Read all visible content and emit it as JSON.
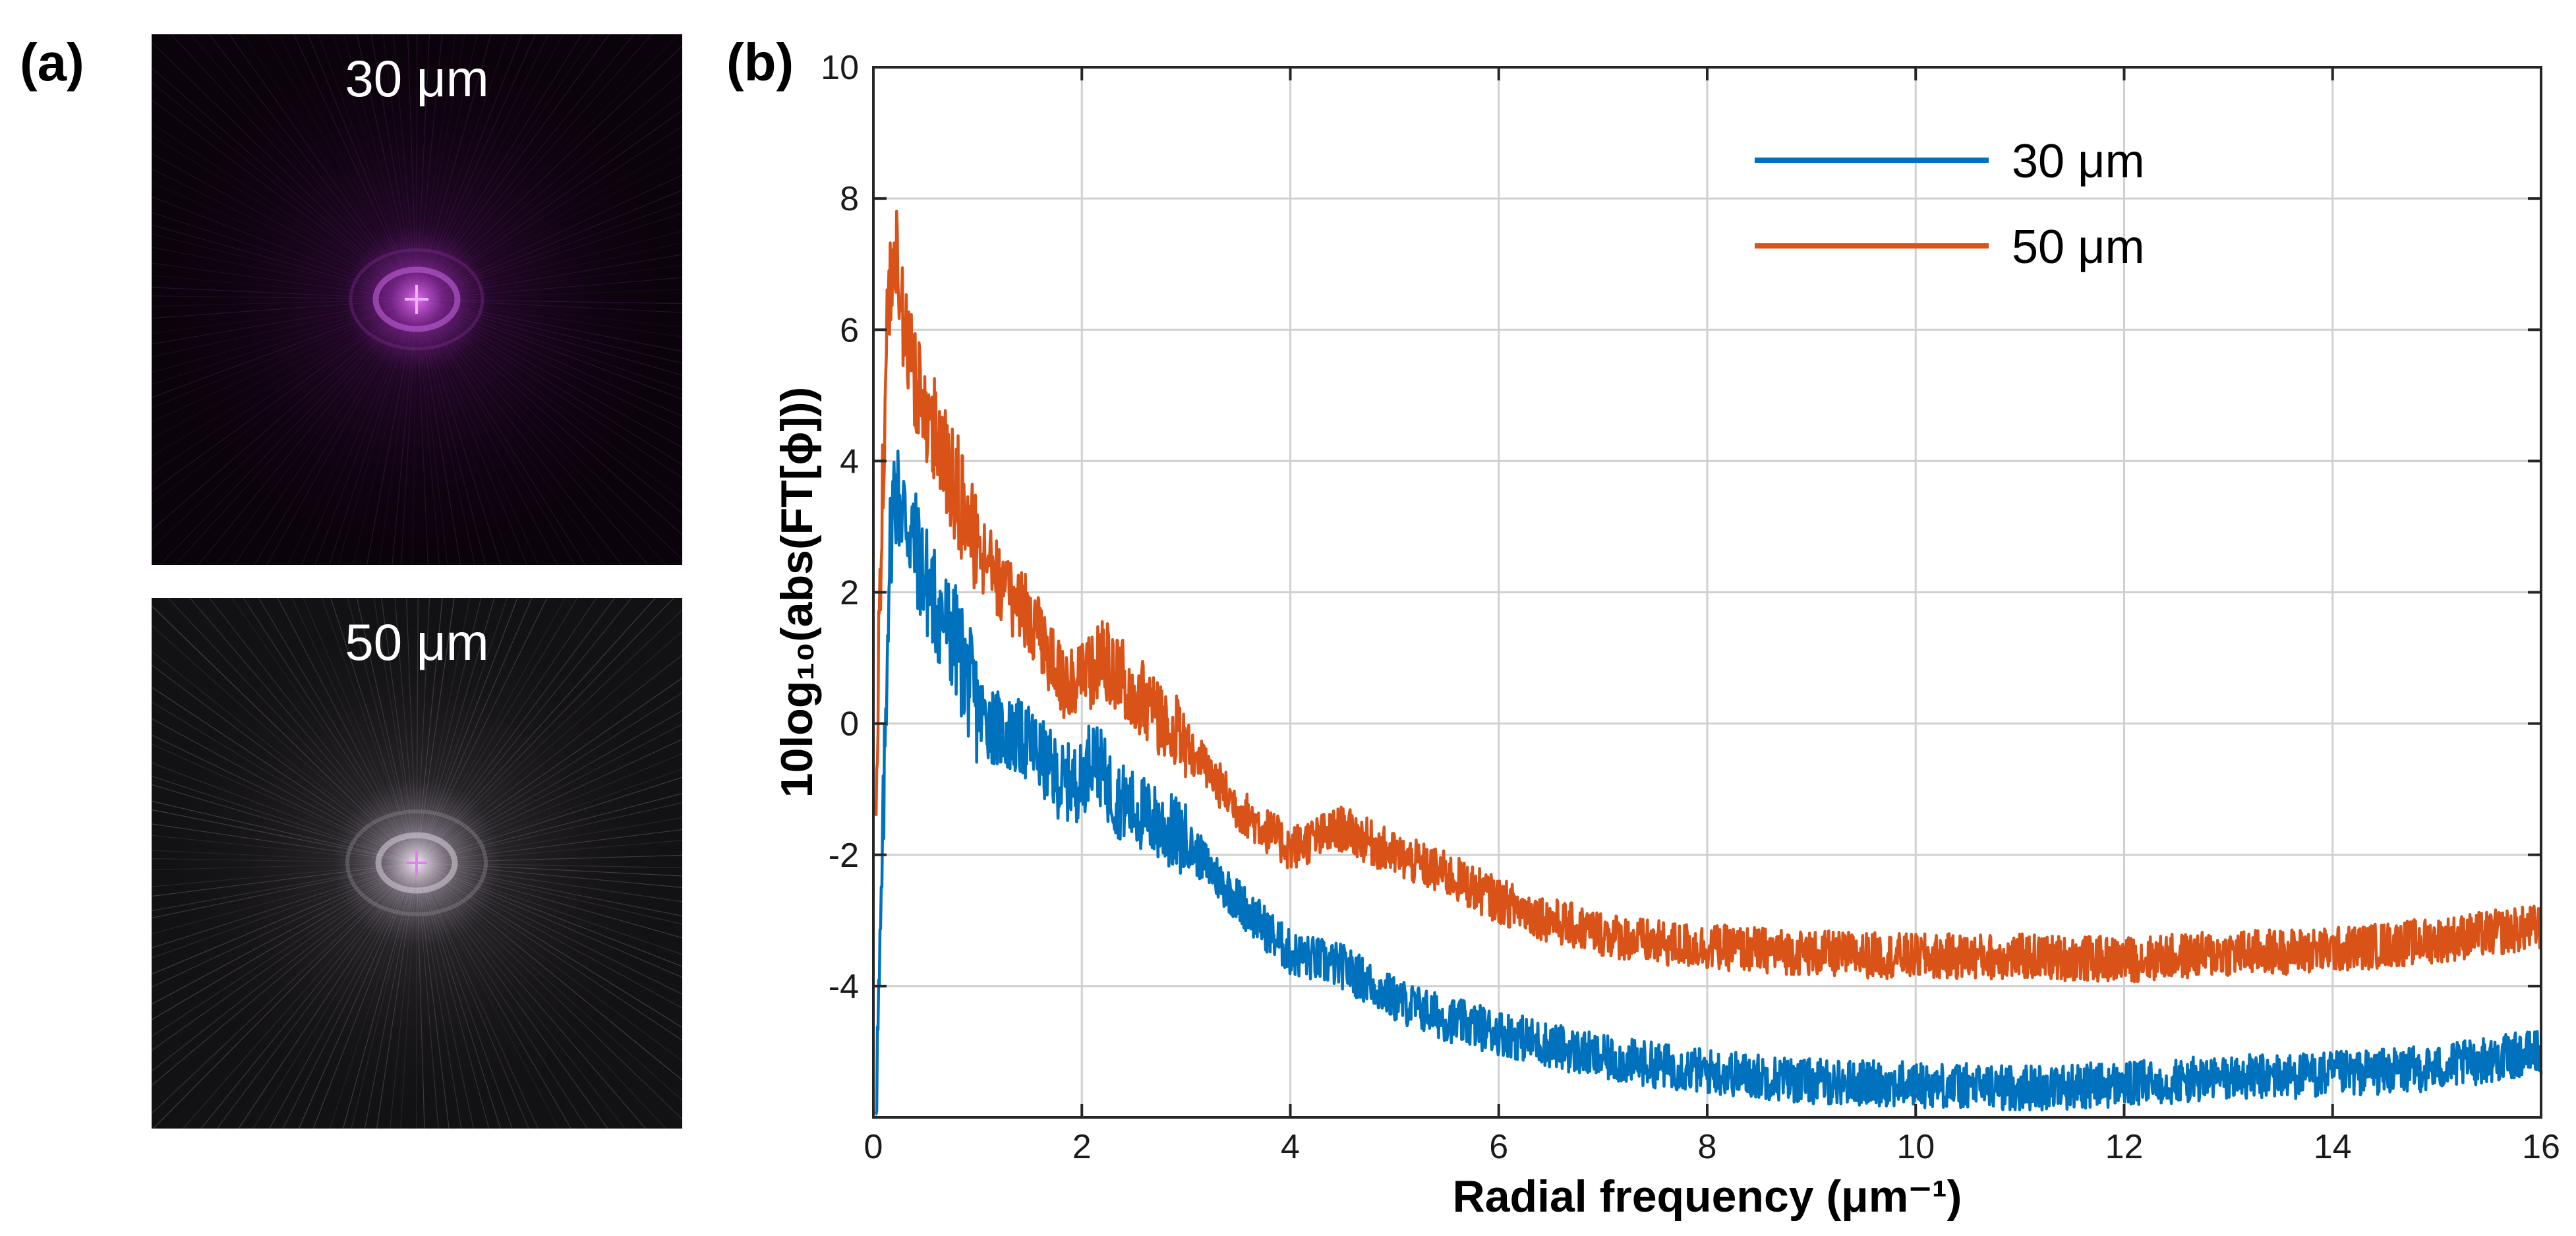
{
  "panels": {
    "a": {
      "label": "(a)"
    },
    "b": {
      "label": "(b)"
    }
  },
  "images": [
    {
      "caption": "30 μm",
      "tint": "#b040c8"
    },
    {
      "caption": "50 μm",
      "tint": "#cfc6d2"
    }
  ],
  "chart_data": {
    "type": "line",
    "title": "",
    "xlabel": "Radial frequency (μm⁻¹)",
    "ylabel": "10log₁₀(abs(FT[ϕ]))",
    "xlim": [
      0,
      16
    ],
    "ylim": [
      -6,
      10
    ],
    "xticks": [
      0,
      2,
      4,
      6,
      8,
      10,
      12,
      14,
      16
    ],
    "yticks": [
      -4,
      -2,
      0,
      2,
      4,
      6,
      8,
      10
    ],
    "grid": true,
    "legend_position": "top-right",
    "series": [
      {
        "name": "30 μm",
        "color": "#0072bd",
        "x": [
          0.02,
          0.06,
          0.1,
          0.15,
          0.2,
          0.3,
          0.4,
          0.5,
          0.6,
          0.8,
          1.0,
          1.2,
          1.5,
          1.8,
          2.0,
          2.1,
          2.3,
          2.6,
          3.0,
          3.5,
          4.0,
          4.5,
          5.0,
          5.5,
          6.0,
          6.5,
          7.0,
          7.5,
          8.0,
          9.0,
          10.0,
          11.0,
          12.0,
          13.0,
          14.0,
          15.0,
          16.0
        ],
        "values": [
          -5.8,
          -4.0,
          -1.2,
          2.5,
          3.6,
          3.2,
          2.7,
          2.2,
          1.8,
          1.2,
          0.2,
          -0.1,
          -0.3,
          -0.9,
          -0.9,
          -0.4,
          -1.1,
          -1.4,
          -1.8,
          -2.7,
          -3.5,
          -3.7,
          -4.2,
          -4.5,
          -4.7,
          -4.9,
          -5.1,
          -5.2,
          -5.3,
          -5.45,
          -5.5,
          -5.55,
          -5.5,
          -5.4,
          -5.35,
          -5.25,
          -5.0
        ]
      },
      {
        "name": "50 μm",
        "color": "#d95319",
        "x": [
          0.02,
          0.06,
          0.1,
          0.15,
          0.2,
          0.25,
          0.3,
          0.4,
          0.5,
          0.6,
          0.8,
          1.0,
          1.2,
          1.5,
          1.8,
          2.0,
          2.2,
          2.5,
          3.0,
          3.5,
          4.0,
          4.5,
          5.0,
          5.5,
          6.0,
          6.5,
          7.0,
          7.5,
          8.0,
          9.0,
          10.0,
          11.0,
          12.0,
          13.0,
          14.0,
          15.0,
          16.0
        ],
        "values": [
          -2.0,
          2.0,
          4.5,
          6.5,
          7.2,
          6.8,
          5.8,
          5.2,
          4.8,
          4.4,
          3.6,
          2.6,
          2.2,
          1.6,
          0.7,
          0.6,
          1.0,
          0.5,
          -0.3,
          -1.3,
          -1.9,
          -1.6,
          -2.0,
          -2.3,
          -2.7,
          -3.0,
          -3.2,
          -3.35,
          -3.4,
          -3.5,
          -3.55,
          -3.55,
          -3.6,
          -3.5,
          -3.45,
          -3.3,
          -3.1
        ]
      }
    ]
  }
}
